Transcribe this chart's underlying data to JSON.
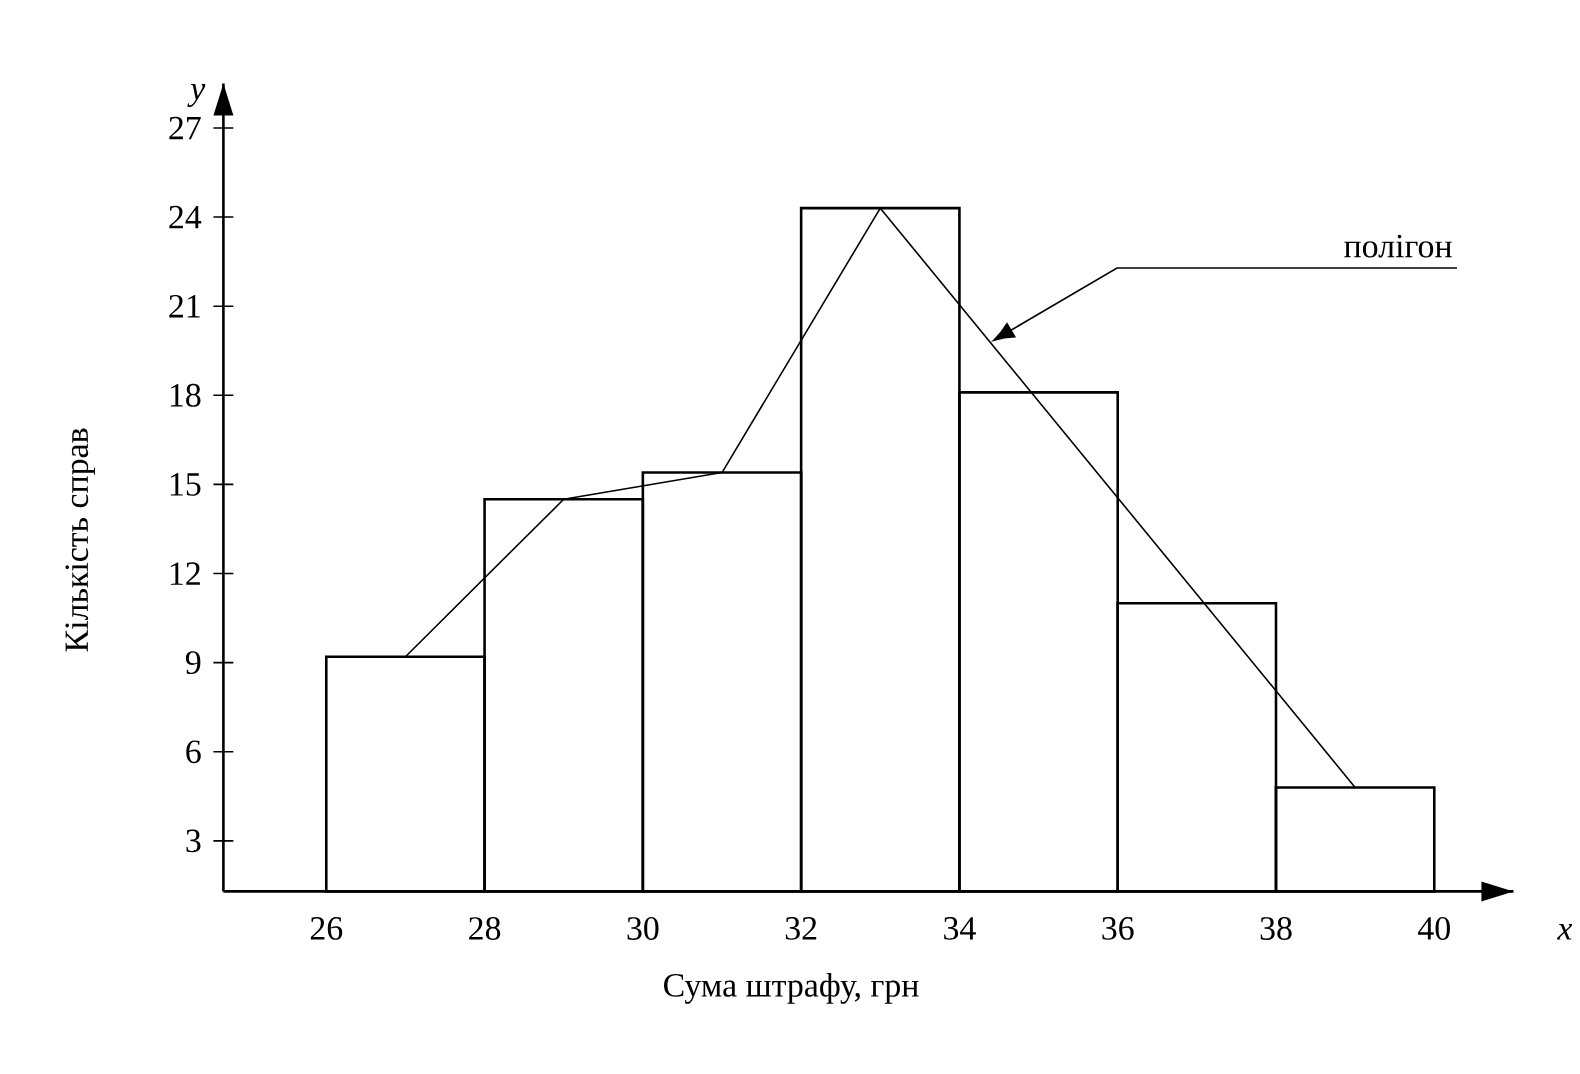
{
  "chart_data": {
    "type": "histogram",
    "xlabel": "Сума штрафу, грн",
    "ylabel": "Кількість справ",
    "bins": [
      26,
      28,
      30,
      32,
      34,
      36,
      38,
      40
    ],
    "values": [
      9.2,
      14.5,
      15.4,
      24.3,
      18.1,
      11,
      4.8
    ],
    "color": "#000000",
    "series": [
      {
        "type": "line",
        "x": [
          27,
          29,
          31,
          33,
          39
        ],
        "values": [
          9.2,
          14.5,
          15.4,
          24.3,
          4.8
        ],
        "color": "#000000"
      }
    ],
    "annotations": [
      "полігон",
      "y",
      "x"
    ],
    "xlim": [
      24.7,
      41
    ],
    "ylim": [
      1.3,
      28.5
    ],
    "xticks": [
      26,
      28,
      30,
      32,
      34,
      36,
      38,
      40
    ],
    "yticks": [
      3,
      6,
      9,
      12,
      15,
      18,
      21,
      24,
      27
    ]
  }
}
